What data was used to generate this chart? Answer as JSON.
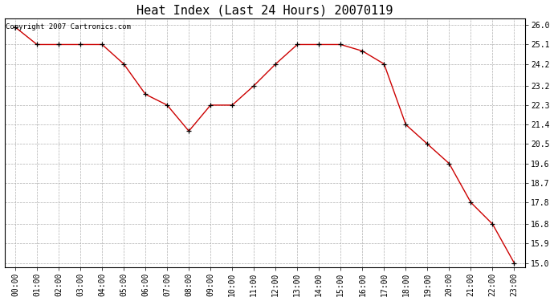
{
  "title": "Heat Index (Last 24 Hours) 20070119",
  "copyright": "Copyright 2007 Cartronics.com",
  "x_labels": [
    "00:00",
    "01:00",
    "02:00",
    "03:00",
    "04:00",
    "05:00",
    "06:00",
    "07:00",
    "08:00",
    "09:00",
    "10:00",
    "11:00",
    "12:00",
    "13:00",
    "14:00",
    "15:00",
    "16:00",
    "17:00",
    "18:00",
    "19:00",
    "20:00",
    "21:00",
    "22:00",
    "23:00"
  ],
  "y_values": [
    25.9,
    25.1,
    25.1,
    25.1,
    25.1,
    24.2,
    22.8,
    22.3,
    21.1,
    22.3,
    22.3,
    23.2,
    24.2,
    25.1,
    25.1,
    25.1,
    24.8,
    24.2,
    21.4,
    20.5,
    19.6,
    17.8,
    16.8,
    15.0
  ],
  "y_ticks": [
    15.0,
    15.9,
    16.8,
    17.8,
    18.7,
    19.6,
    20.5,
    21.4,
    22.3,
    23.2,
    24.2,
    25.1,
    26.0
  ],
  "ylim": [
    14.8,
    26.3
  ],
  "line_color": "#cc0000",
  "marker": "+",
  "marker_color": "#000000",
  "bg_color": "#ffffff",
  "grid_color": "#b0b0b0",
  "title_fontsize": 11,
  "tick_fontsize": 7,
  "copyright_fontsize": 6.5
}
